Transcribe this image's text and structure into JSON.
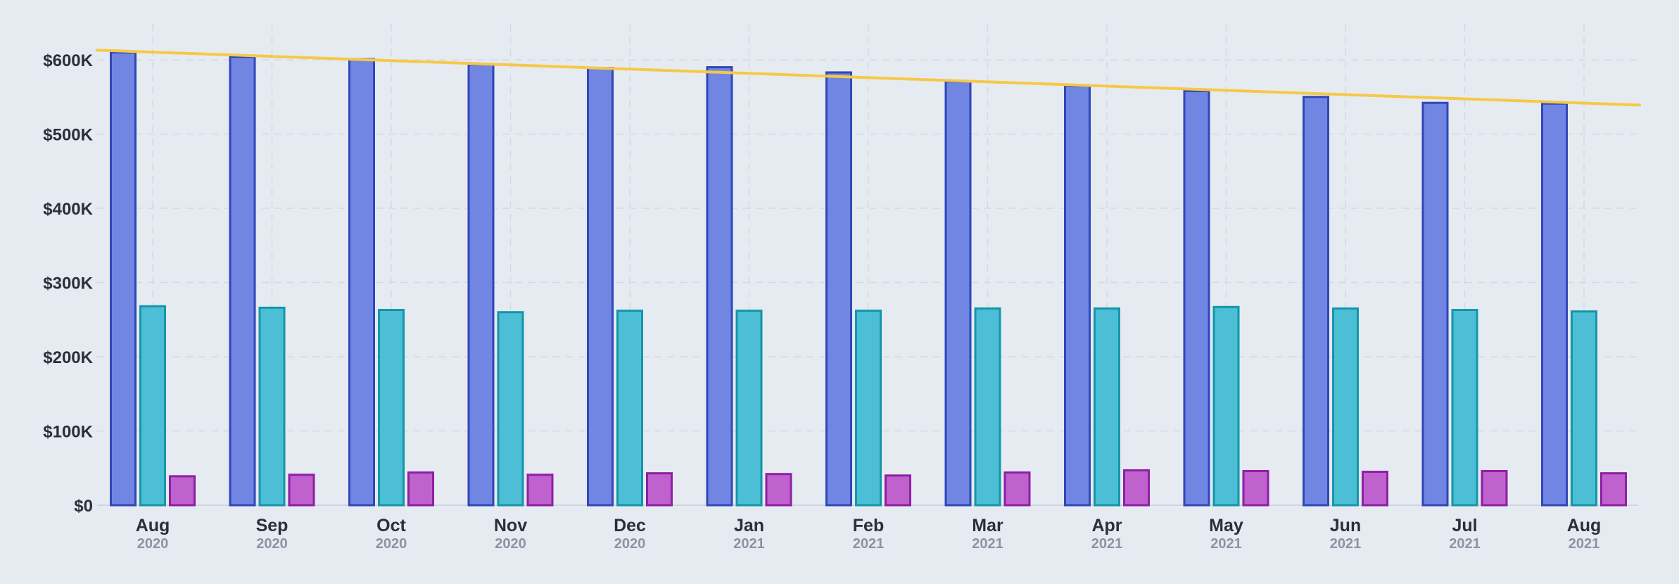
{
  "chart_data": {
    "type": "bar",
    "categories": [
      {
        "month": "Aug",
        "year": "2020"
      },
      {
        "month": "Sep",
        "year": "2020"
      },
      {
        "month": "Oct",
        "year": "2020"
      },
      {
        "month": "Nov",
        "year": "2020"
      },
      {
        "month": "Dec",
        "year": "2020"
      },
      {
        "month": "Jan",
        "year": "2021"
      },
      {
        "month": "Feb",
        "year": "2021"
      },
      {
        "month": "Mar",
        "year": "2021"
      },
      {
        "month": "Apr",
        "year": "2021"
      },
      {
        "month": "May",
        "year": "2021"
      },
      {
        "month": "Jun",
        "year": "2021"
      },
      {
        "month": "Jul",
        "year": "2021"
      },
      {
        "month": "Aug",
        "year": "2021"
      }
    ],
    "series": [
      {
        "values": [
          610000,
          604000,
          601000,
          594000,
          589000,
          590000,
          583000,
          571000,
          565000,
          558000,
          550000,
          542000,
          541000
        ],
        "color": "#7186e3",
        "stroke": "#2f47b8"
      },
      {
        "values": [
          268000,
          266000,
          263000,
          260000,
          262000,
          262000,
          262000,
          265000,
          265000,
          267000,
          265000,
          263000,
          261000
        ],
        "color": "#4cbfd6",
        "stroke": "#1496a9"
      },
      {
        "values": [
          39000,
          41000,
          44000,
          41000,
          43000,
          42000,
          40000,
          44000,
          47000,
          46000,
          45000,
          46000,
          43000
        ],
        "color": "#c062cd",
        "stroke": "#8e1fa5"
      }
    ],
    "trend_line": {
      "start": 613000,
      "end": 539000,
      "color": "#f5c947"
    },
    "yticks": [
      {
        "value": 0,
        "label": "$0"
      },
      {
        "value": 100000,
        "label": "$100K"
      },
      {
        "value": 200000,
        "label": "$200K"
      },
      {
        "value": 300000,
        "label": "$300K"
      },
      {
        "value": 400000,
        "label": "$400K"
      },
      {
        "value": 500000,
        "label": "$500K"
      },
      {
        "value": 600000,
        "label": "$600K"
      }
    ],
    "ylim": [
      0,
      650000
    ],
    "grid": true,
    "legend": "none",
    "title": "",
    "xlabel": "",
    "ylabel": ""
  }
}
